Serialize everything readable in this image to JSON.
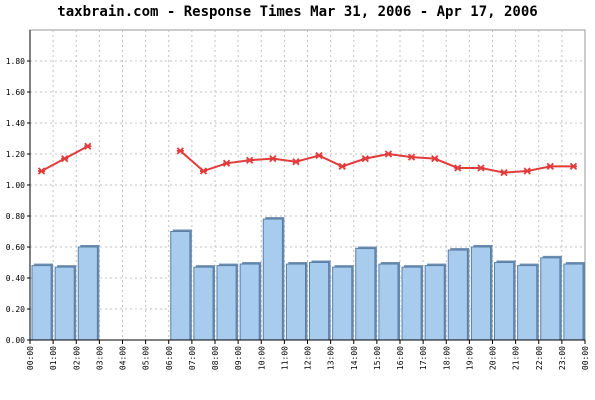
{
  "title": "taxbrain.com - Response Times Mar 31, 2006 - Apr 17, 2006",
  "colors": {
    "bar_fill": "#a8ccee",
    "bar_edge": "#5a7fa6",
    "line": "#e23b3b",
    "grid": "#c0c0c0",
    "axis": "#000000"
  },
  "chart_data": {
    "type": "bar",
    "title": "taxbrain.com - Response Times Mar 31, 2006 - Apr 17, 2006",
    "xlabel": "",
    "ylabel": "",
    "ylim": [
      0,
      2.0
    ],
    "grid": true,
    "y_ticks": [
      "0.00",
      "0.20",
      "0.40",
      "0.60",
      "0.80",
      "1.00",
      "1.20",
      "1.40",
      "1.60",
      "1.80"
    ],
    "x_ticks": [
      "00:00",
      "01:00",
      "02:00",
      "03:00",
      "04:00",
      "05:00",
      "06:00",
      "07:00",
      "08:00",
      "09:00",
      "10:00",
      "11:00",
      "12:00",
      "13:00",
      "14:00",
      "15:00",
      "16:00",
      "17:00",
      "18:00",
      "19:00",
      "20:00",
      "21:00",
      "22:00",
      "23:00",
      "00:00"
    ],
    "series": [
      {
        "kind": "bar",
        "values": [
          0.48,
          0.47,
          0.6,
          null,
          null,
          null,
          0.7,
          0.47,
          0.48,
          0.49,
          0.78,
          0.49,
          0.5,
          0.47,
          0.59,
          0.49,
          0.47,
          0.48,
          0.58,
          0.6,
          0.5,
          0.48,
          0.53,
          0.49
        ]
      },
      {
        "kind": "line",
        "values": [
          1.09,
          1.17,
          1.25,
          null,
          null,
          null,
          1.22,
          1.09,
          1.14,
          1.16,
          1.17,
          1.15,
          1.19,
          1.12,
          1.17,
          1.2,
          1.18,
          1.17,
          1.11,
          1.11,
          1.08,
          1.09,
          1.12,
          1.12
        ]
      }
    ]
  }
}
